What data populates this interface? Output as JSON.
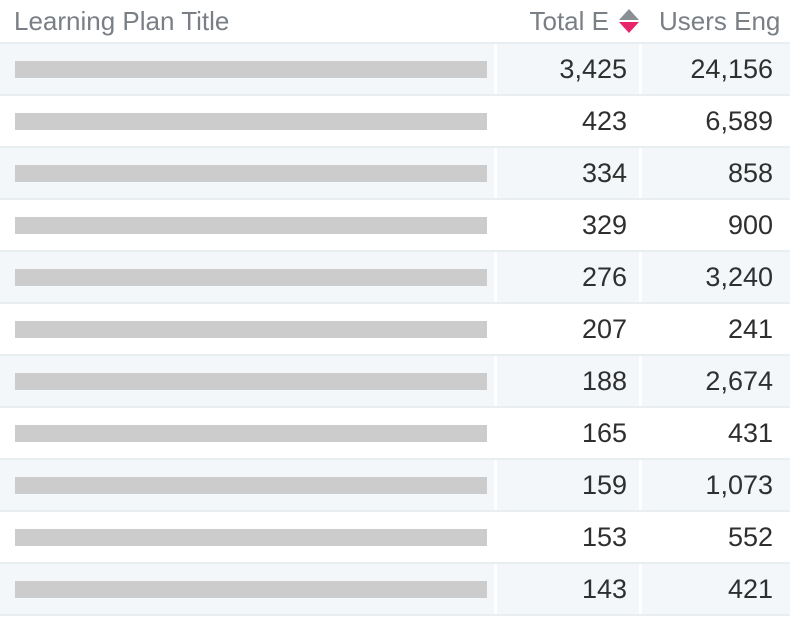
{
  "header": {
    "title_label": "Learning Plan Title",
    "total_label": "Total E",
    "users_label": "Users Eng",
    "sort_icon": "sort-icon",
    "sort_active_color": "#e8246b"
  },
  "rows": [
    {
      "total": "3,425",
      "users": "24,156"
    },
    {
      "total": "423",
      "users": "6,589"
    },
    {
      "total": "334",
      "users": "858"
    },
    {
      "total": "329",
      "users": "900"
    },
    {
      "total": "276",
      "users": "3,240"
    },
    {
      "total": "207",
      "users": "241"
    },
    {
      "total": "188",
      "users": "2,674"
    },
    {
      "total": "165",
      "users": "431"
    },
    {
      "total": "159",
      "users": "1,073"
    },
    {
      "total": "153",
      "users": "552"
    },
    {
      "total": "143",
      "users": "421"
    }
  ]
}
